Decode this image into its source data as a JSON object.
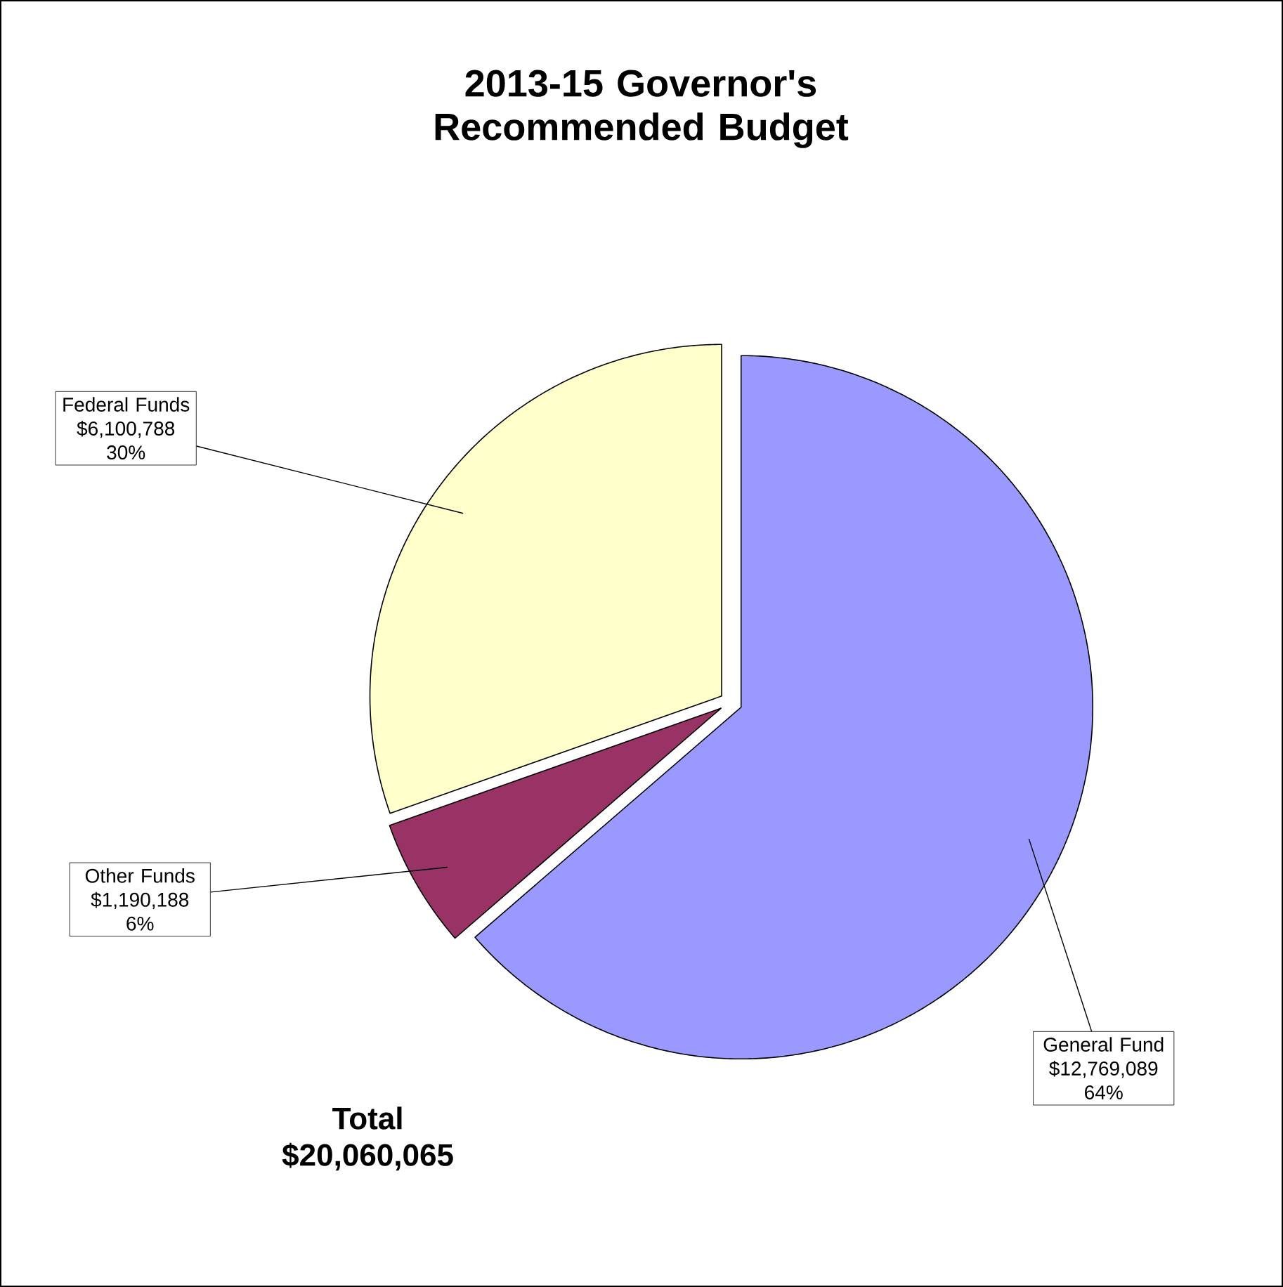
{
  "chart_data": {
    "type": "pie",
    "title": "2013-15 Governor's Recommended Budget",
    "categories": [
      "General Fund",
      "Other Funds",
      "Federal Funds"
    ],
    "values": [
      12769089,
      1190188,
      6100788
    ],
    "colors": [
      "#9999ff",
      "#993366",
      "#ffffcc"
    ],
    "value_labels": [
      "$12,769,089 64%",
      "$1,190,188 6%",
      "$6,100,788 30%"
    ],
    "annotations": [
      "Total $20,060,065"
    ]
  }
}
